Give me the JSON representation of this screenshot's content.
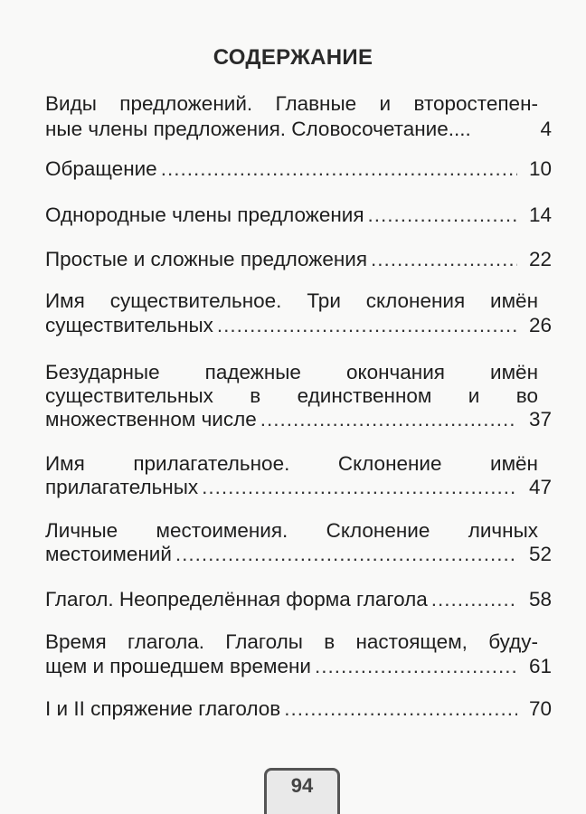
{
  "title": "СОДЕРЖАНИЕ",
  "entries": [
    {
      "lines": [
        "Виды предложений. Главные и второстепен-",
        "ные члены предложения. Словосочетание...."
      ],
      "page": "4"
    },
    {
      "lines": [
        "Обращение"
      ],
      "page": "10"
    },
    {
      "lines": [
        "Однородные члены предложения"
      ],
      "page": "14"
    },
    {
      "lines": [
        "Простые и сложные предложения"
      ],
      "page": "22"
    },
    {
      "lines": [
        "Имя существительное. Три склонения имён",
        "существительных"
      ],
      "page": "26"
    },
    {
      "lines": [
        "Безударные падежные окончания имён",
        "существительных в единственном и во",
        "множественном числе"
      ],
      "page": "37"
    },
    {
      "lines": [
        "Имя прилагательное. Склонение имён",
        "прилагательных"
      ],
      "page": "47"
    },
    {
      "lines": [
        "Личные местоимения. Склонение личных",
        "местоимений"
      ],
      "page": "52"
    },
    {
      "lines": [
        "Глагол. Неопределённая форма глагола"
      ],
      "page": "58"
    },
    {
      "lines": [
        "Время глагола. Глаголы в настоящем, буду-",
        "щем и прошедшем времени"
      ],
      "page": "61"
    },
    {
      "lines": [
        "I и II спряжение глаголов"
      ],
      "page": "70"
    }
  ],
  "page_number": "94"
}
